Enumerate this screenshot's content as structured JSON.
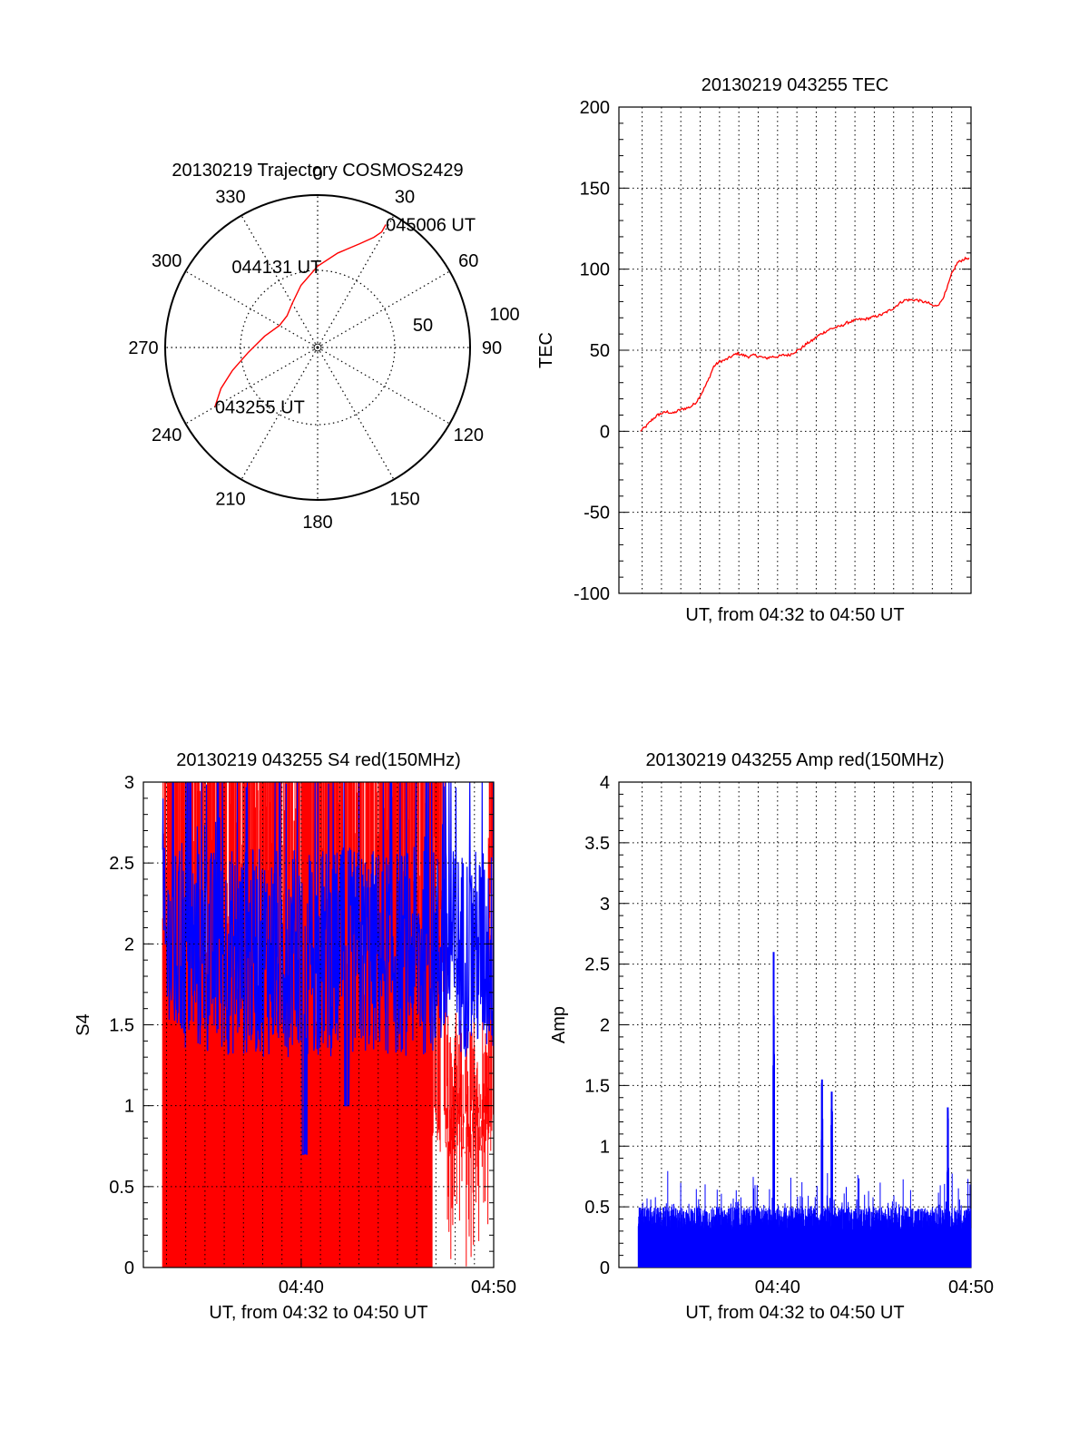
{
  "colors": {
    "red": "#ff0000",
    "blue": "#0000ff",
    "grid": "#000000",
    "axis": "#000000"
  },
  "chart_data": [
    {
      "type": "polar",
      "title": "20130219 Trajectory COSMOS2429",
      "azimuth_labels": [
        "0",
        "30",
        "60",
        "90",
        "120",
        "150",
        "180",
        "210",
        "240",
        "270",
        "300",
        "330"
      ],
      "radial_labels": [
        "50",
        "100"
      ],
      "trajectory": {
        "points": [
          [
            240,
            20
          ],
          [
            247,
            28
          ],
          [
            255,
            38
          ],
          [
            266,
            49
          ],
          [
            282,
            58
          ],
          [
            300,
            64
          ],
          [
            316,
            64
          ],
          [
            330,
            60
          ],
          [
            345,
            52
          ],
          [
            0,
            42
          ],
          [
            12,
            33
          ],
          [
            22,
            24
          ],
          [
            27,
            17
          ],
          [
            29,
            12
          ],
          [
            29,
            7
          ]
        ],
        "point_labels": [
          {
            "text": "043255 UT",
            "az": 240,
            "el": 20
          },
          {
            "text": "044131 UT",
            "az": 311,
            "el": 64
          },
          {
            "text": "045006 UT",
            "az": 29,
            "el": 7
          }
        ]
      }
    },
    {
      "type": "line",
      "title": "20130219 043255 TEC",
      "xlabel": "UT, from 04:32 to 04:50 UT",
      "ylabel": "TEC",
      "ylim": [
        -100,
        200
      ],
      "y_ticks": [
        "-100",
        "-50",
        "0",
        "50",
        "100",
        "150",
        "200"
      ],
      "xlim_minutes": [
        31.8,
        50
      ],
      "grid": true,
      "series": [
        {
          "color": "red",
          "x": [
            32.9,
            33.2,
            33.5,
            33.8,
            34.0,
            34.3,
            34.6,
            34.9,
            35.2,
            35.5,
            35.8,
            36.1,
            36.4,
            36.7,
            37.0,
            37.3,
            37.6,
            37.9,
            38.2,
            38.5,
            38.8,
            39.1,
            39.4,
            39.7,
            40.0,
            40.3,
            40.6,
            40.9,
            41.2,
            41.5,
            41.8,
            42.1,
            42.4,
            42.7,
            43.0,
            43.3,
            43.6,
            43.9,
            44.2,
            44.5,
            44.8,
            45.1,
            45.4,
            45.7,
            46.0,
            46.3,
            46.6,
            46.9,
            47.2,
            47.5,
            47.8,
            48.1,
            48.4,
            48.7,
            49.0,
            49.3,
            49.6,
            49.9
          ],
          "y": [
            0,
            3,
            7,
            10,
            11,
            12,
            11,
            13,
            14,
            15,
            18,
            24,
            31,
            40,
            43,
            44,
            46,
            48,
            47,
            46,
            47,
            46,
            45,
            46,
            46,
            47,
            47,
            49,
            51,
            54,
            56,
            59,
            61,
            63,
            64,
            65,
            67,
            68,
            69,
            69,
            70,
            71,
            72,
            74,
            76,
            79,
            81,
            81,
            81,
            80,
            79,
            77,
            79,
            86,
            97,
            104,
            106,
            107
          ]
        }
      ]
    },
    {
      "type": "bar",
      "title": "20130219 043255 S4 red(150MHz)",
      "xlabel": "UT, from 04:32 to 04:50 UT",
      "ylabel": "S4",
      "ylim": [
        0,
        3
      ],
      "y_ticks": [
        "0",
        "0.5",
        "1",
        "1.5",
        "2",
        "2.5",
        "3"
      ],
      "x_ticks": [
        "04:40",
        "04:50"
      ],
      "xlim_minutes": [
        31.8,
        50
      ],
      "grid": true,
      "series": [
        {
          "name": "",
          "color": "red",
          "style": "vertical-lines",
          "x_range_minutes": [
            32.8,
            50
          ],
          "y_range": [
            0,
            3
          ],
          "approx_mean": 1.7
        },
        {
          "name": "",
          "color": "blue",
          "style": "line",
          "x_range_minutes": [
            32.8,
            50
          ],
          "y_range": [
            0.6,
            3
          ],
          "approx_mean": 1.9
        }
      ]
    },
    {
      "type": "bar",
      "title": "20130219 043255 Amp red(150MHz)",
      "xlabel": "UT, from 04:32 to 04:50 UT",
      "ylabel": "Amp",
      "ylim": [
        0,
        4
      ],
      "y_ticks": [
        "0",
        "0.5",
        "1",
        "1.5",
        "2",
        "2.5",
        "3",
        "3.5",
        "4"
      ],
      "x_ticks": [
        "04:40",
        "04:50"
      ],
      "xlim_minutes": [
        31.8,
        50
      ],
      "grid": true,
      "series": [
        {
          "color": "blue",
          "style": "vertical-lines",
          "x_range_minutes": [
            32.8,
            50
          ],
          "baseline_max": 0.5,
          "peaks": [
            {
              "x": 39.8,
              "y": 2.6
            },
            {
              "x": 42.3,
              "y": 1.55
            },
            {
              "x": 42.8,
              "y": 1.45
            },
            {
              "x": 48.8,
              "y": 1.32
            }
          ]
        }
      ]
    }
  ]
}
